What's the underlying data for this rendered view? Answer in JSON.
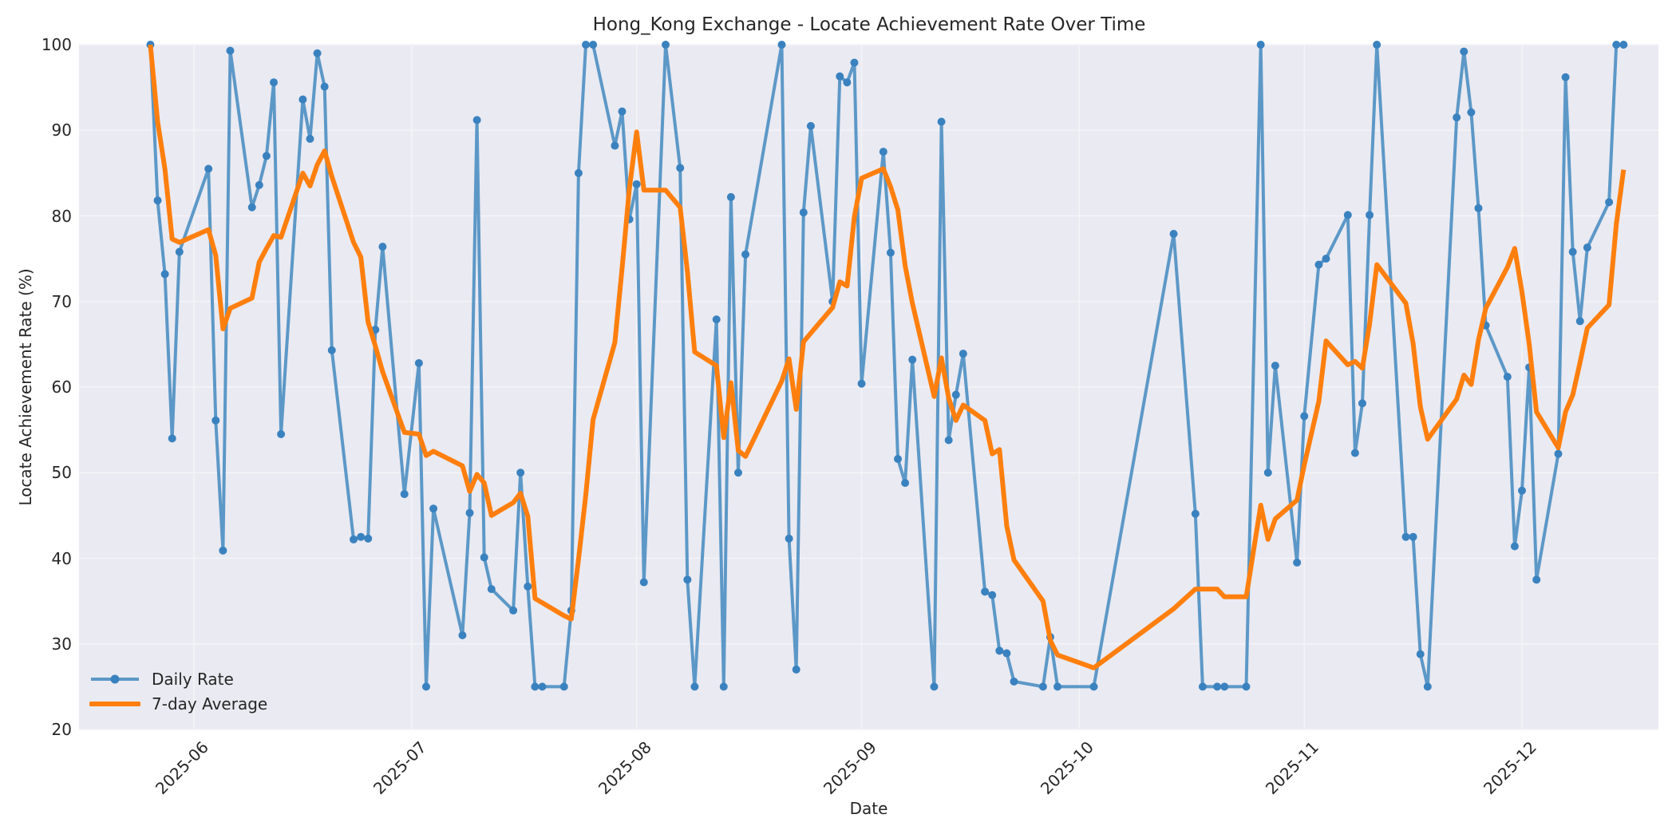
{
  "chart_data": {
    "type": "line",
    "title": "Hong_Kong Exchange - Locate Achievement Rate Over Time",
    "xlabel": "Date",
    "ylabel": "Locate Achievement Rate (%)",
    "ylim": [
      20,
      100
    ],
    "yticks": [
      20,
      30,
      40,
      50,
      60,
      70,
      80,
      90,
      100
    ],
    "xticks": [
      "2025-06",
      "2025-07",
      "2025-08",
      "2025-09",
      "2025-10",
      "2025-11",
      "2025-12"
    ],
    "grid": true,
    "legend_position": "lower left",
    "colors": {
      "daily": "#4c8fc2",
      "avg": "#ff7f0e",
      "plot_bg": "#eaeaf2",
      "grid": "#f5f5f8"
    },
    "series": [
      {
        "name": "Daily Rate",
        "points": [
          [
            "2025-05-26",
            100
          ],
          [
            "2025-05-27",
            81.8
          ],
          [
            "2025-05-28",
            73.2
          ],
          [
            "2025-05-29",
            54
          ],
          [
            "2025-05-30",
            75.8
          ],
          [
            "2025-06-03",
            85.5
          ],
          [
            "2025-06-04",
            56.1
          ],
          [
            "2025-06-05",
            40.9
          ],
          [
            "2025-06-06",
            99.3
          ],
          [
            "2025-06-09",
            81
          ],
          [
            "2025-06-10",
            83.6
          ],
          [
            "2025-06-11",
            87
          ],
          [
            "2025-06-12",
            95.6
          ],
          [
            "2025-06-13",
            54.5
          ],
          [
            "2025-06-16",
            93.6
          ],
          [
            "2025-06-17",
            89
          ],
          [
            "2025-06-18",
            99
          ],
          [
            "2025-06-19",
            95.1
          ],
          [
            "2025-06-20",
            64.3
          ],
          [
            "2025-06-23",
            42.2
          ],
          [
            "2025-06-24",
            42.5
          ],
          [
            "2025-06-25",
            42.3
          ],
          [
            "2025-06-26",
            66.7
          ],
          [
            "2025-06-27",
            76.4
          ],
          [
            "2025-06-30",
            47.5
          ],
          [
            "2025-07-02",
            62.8
          ],
          [
            "2025-07-03",
            25
          ],
          [
            "2025-07-04",
            45.8
          ],
          [
            "2025-07-08",
            31
          ],
          [
            "2025-07-09",
            45.3
          ],
          [
            "2025-07-10",
            91.2
          ],
          [
            "2025-07-11",
            40.1
          ],
          [
            "2025-07-12",
            36.4
          ],
          [
            "2025-07-15",
            33.9
          ],
          [
            "2025-07-16",
            50
          ],
          [
            "2025-07-17",
            36.7
          ],
          [
            "2025-07-18",
            25
          ],
          [
            "2025-07-19",
            25
          ],
          [
            "2025-07-22",
            25
          ],
          [
            "2025-07-23",
            33.9
          ],
          [
            "2025-07-24",
            85
          ],
          [
            "2025-07-25",
            100
          ],
          [
            "2025-07-26",
            100
          ],
          [
            "2025-07-29",
            88.2
          ],
          [
            "2025-07-30",
            92.2
          ],
          [
            "2025-07-31",
            79.6
          ],
          [
            "2025-08-01",
            83.7
          ],
          [
            "2025-08-02",
            37.2
          ],
          [
            "2025-08-05",
            100
          ],
          [
            "2025-08-07",
            85.6
          ],
          [
            "2025-08-08",
            37.5
          ],
          [
            "2025-08-09",
            25
          ],
          [
            "2025-08-12",
            67.9
          ],
          [
            "2025-08-13",
            25
          ],
          [
            "2025-08-14",
            82.2
          ],
          [
            "2025-08-15",
            50
          ],
          [
            "2025-08-16",
            75.5
          ],
          [
            "2025-08-21",
            100
          ],
          [
            "2025-08-22",
            42.3
          ],
          [
            "2025-08-23",
            27
          ],
          [
            "2025-08-24",
            80.4
          ],
          [
            "2025-08-25",
            90.5
          ],
          [
            "2025-08-28",
            70
          ],
          [
            "2025-08-29",
            96.3
          ],
          [
            "2025-08-30",
            95.6
          ],
          [
            "2025-08-31",
            97.9
          ],
          [
            "2025-09-01",
            60.4
          ],
          [
            "2025-09-04",
            87.5
          ],
          [
            "2025-09-05",
            75.7
          ],
          [
            "2025-09-06",
            51.6
          ],
          [
            "2025-09-07",
            48.8
          ],
          [
            "2025-09-08",
            63.2
          ],
          [
            "2025-09-11",
            25
          ],
          [
            "2025-09-12",
            91
          ],
          [
            "2025-09-13",
            53.8
          ],
          [
            "2025-09-14",
            59.1
          ],
          [
            "2025-09-15",
            63.9
          ],
          [
            "2025-09-18",
            36.1
          ],
          [
            "2025-09-19",
            35.7
          ],
          [
            "2025-09-20",
            29.2
          ],
          [
            "2025-09-21",
            28.9
          ],
          [
            "2025-09-22",
            25.6
          ],
          [
            "2025-09-26",
            25
          ],
          [
            "2025-09-27",
            30.8
          ],
          [
            "2025-09-28",
            25
          ],
          [
            "2025-10-03",
            25
          ],
          [
            "2025-10-14",
            77.9
          ],
          [
            "2025-10-17",
            45.2
          ],
          [
            "2025-10-18",
            25
          ],
          [
            "2025-10-20",
            25
          ],
          [
            "2025-10-21",
            25
          ],
          [
            "2025-10-24",
            25
          ],
          [
            "2025-10-26",
            100
          ],
          [
            "2025-10-27",
            50
          ],
          [
            "2025-10-28",
            62.5
          ],
          [
            "2025-10-31",
            39.5
          ],
          [
            "2025-11-01",
            56.6
          ],
          [
            "2025-11-03",
            74.3
          ],
          [
            "2025-11-04",
            75
          ],
          [
            "2025-11-07",
            80.1
          ],
          [
            "2025-11-08",
            52.3
          ],
          [
            "2025-11-09",
            58.1
          ],
          [
            "2025-11-10",
            80.1
          ],
          [
            "2025-11-11",
            100
          ],
          [
            "2025-11-15",
            42.5
          ],
          [
            "2025-11-16",
            42.5
          ],
          [
            "2025-11-17",
            28.8
          ],
          [
            "2025-11-18",
            25
          ],
          [
            "2025-11-22",
            91.5
          ],
          [
            "2025-11-23",
            99.2
          ],
          [
            "2025-11-24",
            92.1
          ],
          [
            "2025-11-25",
            80.9
          ],
          [
            "2025-11-26",
            67.2
          ],
          [
            "2025-11-29",
            61.2
          ],
          [
            "2025-11-30",
            41.4
          ],
          [
            "2025-12-01",
            47.9
          ],
          [
            "2025-12-02",
            62.3
          ],
          [
            "2025-12-03",
            37.5
          ],
          [
            "2025-12-06",
            52.2
          ],
          [
            "2025-12-07",
            96.2
          ],
          [
            "2025-12-08",
            75.8
          ],
          [
            "2025-12-09",
            67.7
          ],
          [
            "2025-12-10",
            76.3
          ],
          [
            "2025-12-13",
            81.6
          ],
          [
            "2025-12-14",
            100
          ],
          [
            "2025-12-15",
            100
          ]
        ]
      },
      {
        "name": "7-day Average",
        "points": [
          [
            "2025-05-26",
            100
          ],
          [
            "2025-05-27",
            91
          ],
          [
            "2025-05-28",
            85.5
          ],
          [
            "2025-05-29",
            77.3
          ],
          [
            "2025-05-30",
            76.9
          ],
          [
            "2025-06-03",
            78.4
          ],
          [
            "2025-06-04",
            75.4
          ],
          [
            "2025-06-05",
            66.8
          ],
          [
            "2025-06-06",
            69.2
          ],
          [
            "2025-06-09",
            70.4
          ],
          [
            "2025-06-10",
            74.6
          ],
          [
            "2025-06-11",
            76.2
          ],
          [
            "2025-06-12",
            77.7
          ],
          [
            "2025-06-13",
            77.5
          ],
          [
            "2025-06-16",
            85
          ],
          [
            "2025-06-17",
            83.5
          ],
          [
            "2025-06-18",
            86
          ],
          [
            "2025-06-19",
            87.6
          ],
          [
            "2025-06-20",
            84.6
          ],
          [
            "2025-06-23",
            76.9
          ],
          [
            "2025-06-24",
            75.2
          ],
          [
            "2025-06-25",
            67.6
          ],
          [
            "2025-06-26",
            64.8
          ],
          [
            "2025-06-27",
            61.8
          ],
          [
            "2025-06-30",
            54.7
          ],
          [
            "2025-07-02",
            54.5
          ],
          [
            "2025-07-03",
            52
          ],
          [
            "2025-07-04",
            52.5
          ],
          [
            "2025-07-08",
            50.8
          ],
          [
            "2025-07-09",
            47.8
          ],
          [
            "2025-07-10",
            49.8
          ],
          [
            "2025-07-11",
            48.8
          ],
          [
            "2025-07-12",
            45
          ],
          [
            "2025-07-15",
            46.5
          ],
          [
            "2025-07-16",
            47.6
          ],
          [
            "2025-07-17",
            44.9
          ],
          [
            "2025-07-18",
            35.3
          ],
          [
            "2025-07-22",
            33.3
          ],
          [
            "2025-07-23",
            32.9
          ],
          [
            "2025-07-24",
            39.9
          ],
          [
            "2025-07-25",
            47.4
          ],
          [
            "2025-07-26",
            56.2
          ],
          [
            "2025-07-29",
            65.2
          ],
          [
            "2025-07-30",
            73.9
          ],
          [
            "2025-07-31",
            83.2
          ],
          [
            "2025-08-01",
            89.8
          ],
          [
            "2025-08-02",
            83
          ],
          [
            "2025-08-05",
            83
          ],
          [
            "2025-08-07",
            81
          ],
          [
            "2025-08-08",
            73.5
          ],
          [
            "2025-08-09",
            64.1
          ],
          [
            "2025-08-12",
            62.5
          ],
          [
            "2025-08-13",
            54.1
          ],
          [
            "2025-08-14",
            60.5
          ],
          [
            "2025-08-15",
            52.6
          ],
          [
            "2025-08-16",
            51.9
          ],
          [
            "2025-08-21",
            60.7
          ],
          [
            "2025-08-22",
            63.3
          ],
          [
            "2025-08-23",
            57.4
          ],
          [
            "2025-08-24",
            65.3
          ],
          [
            "2025-08-25",
            66.3
          ],
          [
            "2025-08-28",
            69.3
          ],
          [
            "2025-08-29",
            72.3
          ],
          [
            "2025-08-30",
            71.8
          ],
          [
            "2025-08-31",
            79.9
          ],
          [
            "2025-09-01",
            84.4
          ],
          [
            "2025-09-04",
            85.5
          ],
          [
            "2025-09-05",
            83.4
          ],
          [
            "2025-09-06",
            80.7
          ],
          [
            "2025-09-07",
            74.2
          ],
          [
            "2025-09-08",
            69.8
          ],
          [
            "2025-09-11",
            58.9
          ],
          [
            "2025-09-12",
            63.4
          ],
          [
            "2025-09-13",
            58.7
          ],
          [
            "2025-09-14",
            56.1
          ],
          [
            "2025-09-15",
            57.9
          ],
          [
            "2025-09-18",
            56.1
          ],
          [
            "2025-09-19",
            52.2
          ],
          [
            "2025-09-20",
            52.7
          ],
          [
            "2025-09-21",
            43.8
          ],
          [
            "2025-09-22",
            39.8
          ],
          [
            "2025-09-26",
            35
          ],
          [
            "2025-09-27",
            30.4
          ],
          [
            "2025-09-28",
            28.7
          ],
          [
            "2025-10-03",
            27.2
          ],
          [
            "2025-10-14",
            34.1
          ],
          [
            "2025-10-17",
            36.4
          ],
          [
            "2025-10-18",
            36.4
          ],
          [
            "2025-10-20",
            36.4
          ],
          [
            "2025-10-21",
            35.5
          ],
          [
            "2025-10-24",
            35.5
          ],
          [
            "2025-10-26",
            46.2
          ],
          [
            "2025-10-27",
            42.2
          ],
          [
            "2025-10-28",
            44.6
          ],
          [
            "2025-10-31",
            46.8
          ],
          [
            "2025-11-01",
            50.9
          ],
          [
            "2025-11-03",
            58.3
          ],
          [
            "2025-11-04",
            65.4
          ],
          [
            "2025-11-07",
            62.6
          ],
          [
            "2025-11-08",
            63
          ],
          [
            "2025-11-09",
            62.2
          ],
          [
            "2025-11-10",
            67.4
          ],
          [
            "2025-11-11",
            74.3
          ],
          [
            "2025-11-15",
            69.8
          ],
          [
            "2025-11-16",
            65.1
          ],
          [
            "2025-11-17",
            57.7
          ],
          [
            "2025-11-18",
            53.9
          ],
          [
            "2025-11-22",
            58.6
          ],
          [
            "2025-11-23",
            61.4
          ],
          [
            "2025-11-24",
            60.3
          ],
          [
            "2025-11-25",
            65.5
          ],
          [
            "2025-11-26",
            69.2
          ],
          [
            "2025-11-29",
            74
          ],
          [
            "2025-11-30",
            76.2
          ],
          [
            "2025-12-01",
            71.1
          ],
          [
            "2025-12-02",
            65
          ],
          [
            "2025-12-03",
            57.1
          ],
          [
            "2025-12-06",
            52.9
          ],
          [
            "2025-12-07",
            57.1
          ],
          [
            "2025-12-08",
            59.1
          ],
          [
            "2025-12-09",
            62.9
          ],
          [
            "2025-12-10",
            66.9
          ],
          [
            "2025-12-13",
            69.6
          ],
          [
            "2025-12-14",
            79
          ],
          [
            "2025-12-15",
            85.4
          ]
        ]
      }
    ]
  },
  "legend": {
    "items": [
      {
        "label": "Daily Rate"
      },
      {
        "label": "7-day Average"
      }
    ]
  }
}
